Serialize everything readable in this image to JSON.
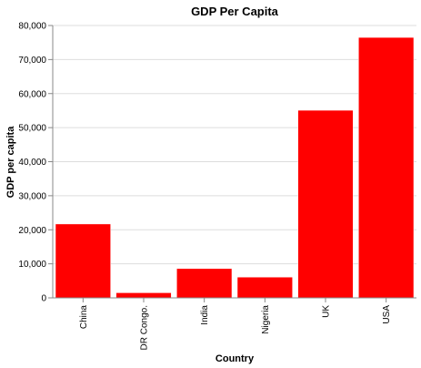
{
  "chart_data": {
    "type": "bar",
    "title": "GDP Per Capita",
    "xlabel": "Country",
    "ylabel": "GDP per capita",
    "categories": [
      "China",
      "DR Congo.",
      "India",
      "Nigeria",
      "UK",
      "USA"
    ],
    "values": [
      21700,
      1500,
      8600,
      6100,
      55100,
      76500
    ],
    "ylim": [
      0,
      80000
    ],
    "yticks": [
      0,
      10000,
      20000,
      30000,
      40000,
      50000,
      60000,
      70000,
      80000
    ],
    "ytick_labels": [
      "0",
      "10,000",
      "20,000",
      "30,000",
      "40,000",
      "50,000",
      "60,000",
      "70,000",
      "80,000"
    ],
    "bar_color": "#ff0000",
    "grid": true,
    "legend": "none"
  }
}
